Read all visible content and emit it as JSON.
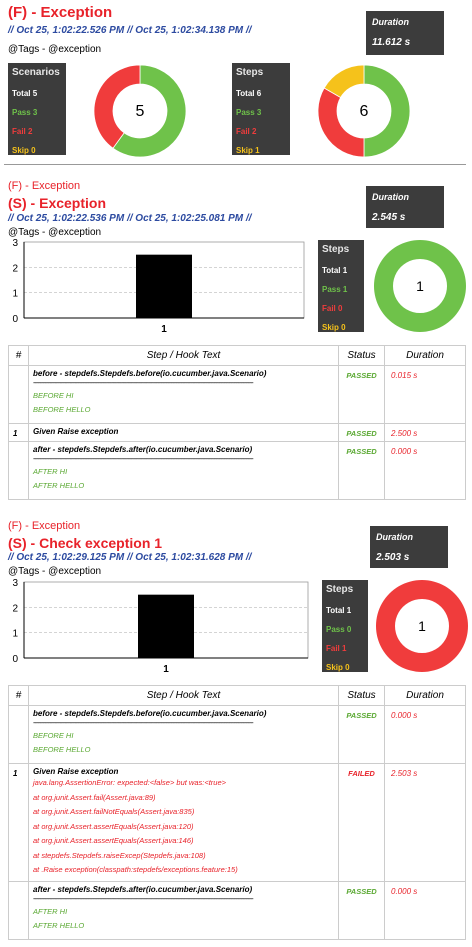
{
  "feature": {
    "title": "(F) - Exception",
    "times": "//  Oct 25, 1:02:22.526 PM  //  Oct 25, 1:02:34.138 PM  //",
    "tags": "@Tags - @exception",
    "duration_label": "Duration",
    "duration": "11.612 s",
    "scenarios": {
      "header": "Scenarios",
      "total": "Total 5",
      "pass": "Pass 3",
      "fail": "Fail 2",
      "skip": "Skip 0",
      "count": "5",
      "pass_value": 3,
      "fail_value": 2,
      "skip_value": 0
    },
    "steps": {
      "header": "Steps",
      "total": "Total 6",
      "pass": "Pass 3",
      "fail": "Fail 2",
      "skip": "Skip 1",
      "count": "6",
      "pass_value": 3,
      "fail_value": 2,
      "skip_value": 1
    }
  },
  "colors": {
    "pass": "#6fc24a",
    "fail": "#f03c3c",
    "skip": "#f5c21b",
    "box": "#3c3c3c"
  },
  "table_headers": {
    "num": "#",
    "text": "Step / Hook Text",
    "status": "Status",
    "duration": "Duration"
  },
  "scenario1": {
    "feature_label": "(F) - Exception",
    "title": "(S) - Exception",
    "times": "//  Oct 25, 1:02:22.536 PM  //  Oct 25, 1:02:25.081 PM  //",
    "tags": "@Tags - @exception",
    "duration_label": "Duration",
    "duration": "2.545 s",
    "steps": {
      "header": "Steps",
      "total": "Total 1",
      "pass": "Pass 1",
      "fail": "Fail 0",
      "skip": "Skip 0",
      "count": "1",
      "pass_value": 1,
      "fail_value": 0
    },
    "chart_data": {
      "type": "bar",
      "categories": [
        "1"
      ],
      "values": [
        2.5
      ],
      "ylim": [
        0,
        3
      ],
      "yticks": [
        "0",
        "1",
        "2",
        "3"
      ],
      "xlabel": "",
      "ylabel": "",
      "title": "",
      "grid": true
    },
    "rows": [
      {
        "num": "",
        "text": "before - stepdefs.Stepdefs.before(io.cucumber.java.Scenario)",
        "output": [
          "BEFORE HI",
          "BEFORE HELLO"
        ],
        "status": "PASSED",
        "duration": "0.015 s"
      },
      {
        "num": "1",
        "text": "Given Raise exception",
        "status": "PASSED",
        "duration": "2.500 s"
      },
      {
        "num": "",
        "text": "after - stepdefs.Stepdefs.after(io.cucumber.java.Scenario)",
        "output": [
          "AFTER HI",
          "AFTER HELLO"
        ],
        "status": "PASSED",
        "duration": "0.000 s"
      }
    ]
  },
  "scenario2": {
    "feature_label": "(F) - Exception",
    "title": "(S) - Check exception 1",
    "times": "//  Oct 25, 1:02:29.125 PM  //  Oct 25, 1:02:31.628 PM  //",
    "tags": "@Tags - @exception",
    "duration_label": "Duration",
    "duration": "2.503 s",
    "steps": {
      "header": "Steps",
      "total": "Total 1",
      "pass": "Pass 0",
      "fail": "Fail 1",
      "skip": "Skip 0",
      "count": "1",
      "pass_value": 0,
      "fail_value": 1
    },
    "chart_data": {
      "type": "bar",
      "categories": [
        "1"
      ],
      "values": [
        2.5
      ],
      "ylim": [
        0,
        3
      ],
      "yticks": [
        "0",
        "1",
        "2",
        "3"
      ],
      "xlabel": "",
      "ylabel": "",
      "title": "",
      "grid": true
    },
    "rows": [
      {
        "num": "",
        "text": "before - stepdefs.Stepdefs.before(io.cucumber.java.Scenario)",
        "output": [
          "BEFORE HI",
          "BEFORE HELLO"
        ],
        "status": "PASSED",
        "duration": "0.000 s"
      },
      {
        "num": "1",
        "text": "Given Raise exception",
        "error": [
          "java.lang.AssertionError: expected:<false> but was:<true>",
          "at org.junit.Assert.fail(Assert.java:89)",
          "at org.junit.Assert.failNotEquals(Assert.java:835)",
          "at org.junit.Assert.assertEquals(Assert.java:120)",
          "at org.junit.Assert.assertEquals(Assert.java:146)",
          "at stepdefs.Stepdefs.raiseExcep(Stepdefs.java:108)",
          "at .Raise exception(classpath:stepdefs/exceptions.feature:15)"
        ],
        "status": "FAILED",
        "duration": "2.503 s"
      },
      {
        "num": "",
        "text": "after - stepdefs.Stepdefs.after(io.cucumber.java.Scenario)",
        "output": [
          "AFTER HI",
          "AFTER HELLO"
        ],
        "status": "PASSED",
        "duration": "0.000 s"
      }
    ]
  }
}
